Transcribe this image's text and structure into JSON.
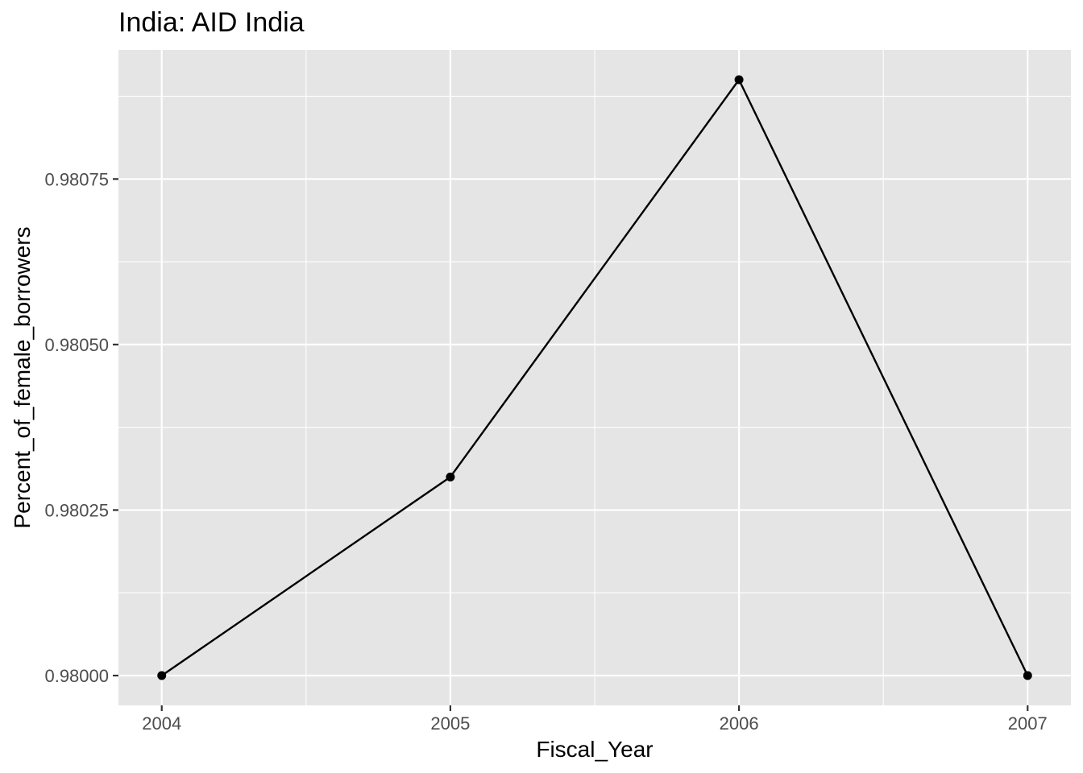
{
  "chart_data": {
    "type": "line",
    "title": "India:  AID India",
    "xlabel": "Fiscal_Year",
    "ylabel": "Percent_of_female_borrowers",
    "x": [
      2004,
      2005,
      2006,
      2007
    ],
    "series": [
      {
        "values": [
          0.98,
          0.9803,
          0.9809,
          0.98
        ]
      }
    ],
    "x_ticks": [
      "2004",
      "2005",
      "2006",
      "2007"
    ],
    "y_ticks": [
      "0.98000",
      "0.98025",
      "0.98050",
      "0.98075"
    ],
    "y_tick_values": [
      0.98,
      0.98025,
      0.9805,
      0.98075
    ],
    "xlim": [
      2003.85,
      2007.15
    ],
    "ylim": [
      0.979955,
      0.980945
    ],
    "grid": true,
    "panel_background": "#e5e5e5",
    "grid_color": "#ffffff",
    "line_color": "#000000",
    "point_color": "#000000",
    "legend": "none"
  }
}
